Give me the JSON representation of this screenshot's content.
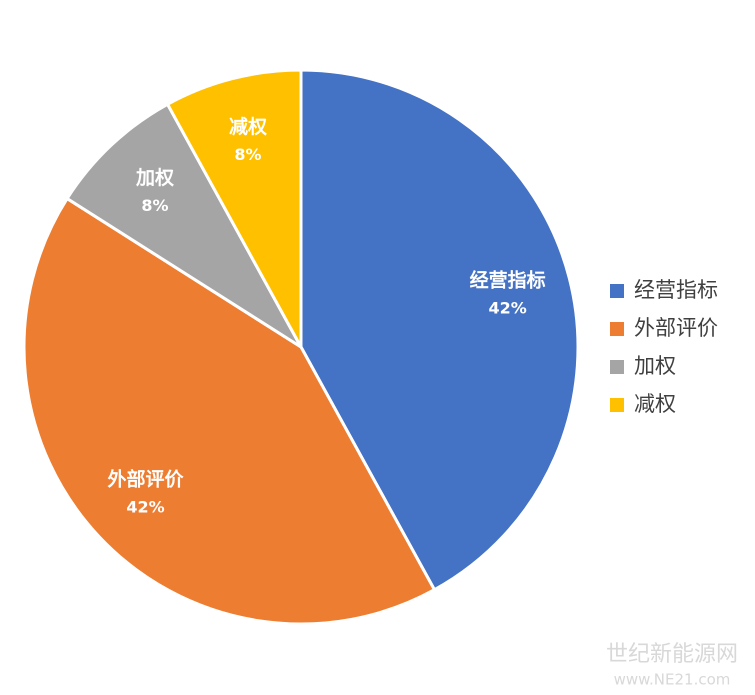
{
  "chart_data": {
    "type": "pie",
    "categories": [
      "经营指标",
      "外部评价",
      "加权",
      "减权"
    ],
    "values": [
      42,
      42,
      8,
      8
    ],
    "value_labels": [
      "42%",
      "42%",
      "8%",
      "8%"
    ],
    "colors": [
      "#4472c4",
      "#ed7d31",
      "#a5a5a5",
      "#ffc000"
    ],
    "legend": "right",
    "annotations": [
      "世纪新能源网",
      "www.NE21.com"
    ]
  }
}
